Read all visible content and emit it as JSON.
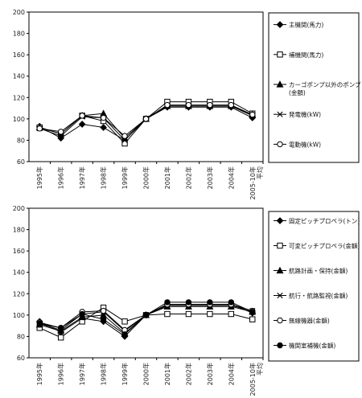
{
  "chart_data": [
    {
      "type": "line",
      "categories": [
        "1995年",
        "1996年",
        "1997年",
        "1998年",
        "1999年",
        "2000年",
        "2001年",
        "2002年",
        "2003年",
        "2004年",
        "2005-10年平均"
      ],
      "ylim": [
        60,
        200
      ],
      "yticks": [
        60,
        80,
        100,
        120,
        140,
        160,
        180,
        200
      ],
      "grid": false,
      "legend_position": "right",
      "series": [
        {
          "name": "主機関(馬力)",
          "marker": "diamond-filled",
          "values": [
            93,
            82,
            95,
            92,
            80,
            100,
            111,
            111,
            111,
            111,
            101
          ]
        },
        {
          "name": "補機関(馬力)",
          "marker": "square-open",
          "values": [
            92,
            86,
            103,
            98,
            77,
            100,
            116,
            116,
            116,
            116,
            105
          ]
        },
        {
          "name": "カーゴポンプ以外のポンプ(金額)",
          "marker": "triangle-filled",
          "values": [
            92,
            86,
            103,
            105,
            82,
            100,
            112,
            112,
            112,
            112,
            104
          ]
        },
        {
          "name": "発電機(kW)",
          "marker": "x",
          "values": [
            91,
            84,
            102,
            101,
            80,
            100,
            112,
            112,
            112,
            112,
            103
          ]
        },
        {
          "name": "電動機(kW)",
          "marker": "circle-open",
          "values": [
            91,
            88,
            103,
            101,
            84,
            100,
            113,
            113,
            113,
            113,
            104
          ]
        }
      ]
    },
    {
      "type": "line",
      "categories": [
        "1995年",
        "1996年",
        "1997年",
        "1998年",
        "1999年",
        "2000年",
        "2001年",
        "2002年",
        "2003年",
        "2004年",
        "2005-10年平均"
      ],
      "ylim": [
        60,
        200
      ],
      "yticks": [
        60,
        80,
        100,
        120,
        140,
        160,
        180,
        200
      ],
      "grid": false,
      "legend_position": "right",
      "series": [
        {
          "name": "固定ピッチプロペラ(トン)",
          "marker": "diamond-filled",
          "values": [
            94,
            84,
            97,
            94,
            80,
            100,
            110,
            110,
            110,
            110,
            102
          ]
        },
        {
          "name": "可変ピッチプロペラ(金額)",
          "marker": "square-open",
          "values": [
            88,
            79,
            94,
            107,
            94,
            100,
            101,
            101,
            101,
            101,
            96
          ]
        },
        {
          "name": "航路計画・保持(金額)",
          "marker": "triangle-filled",
          "values": [
            91,
            85,
            98,
            100,
            83,
            100,
            108,
            108,
            108,
            108,
            103
          ]
        },
        {
          "name": "航行・航路監視(金額)",
          "marker": "x",
          "values": [
            92,
            86,
            101,
            103,
            85,
            100,
            109,
            109,
            109,
            109,
            104
          ]
        },
        {
          "name": "無線機器(金額)",
          "marker": "circle-open",
          "values": [
            93,
            88,
            103,
            104,
            86,
            100,
            110,
            110,
            110,
            110,
            104
          ]
        },
        {
          "name": "機関室補機(金額)",
          "marker": "circle-filled",
          "values": [
            92,
            88,
            101,
            96,
            82,
            100,
            112,
            112,
            112,
            112,
            103
          ]
        }
      ]
    }
  ]
}
